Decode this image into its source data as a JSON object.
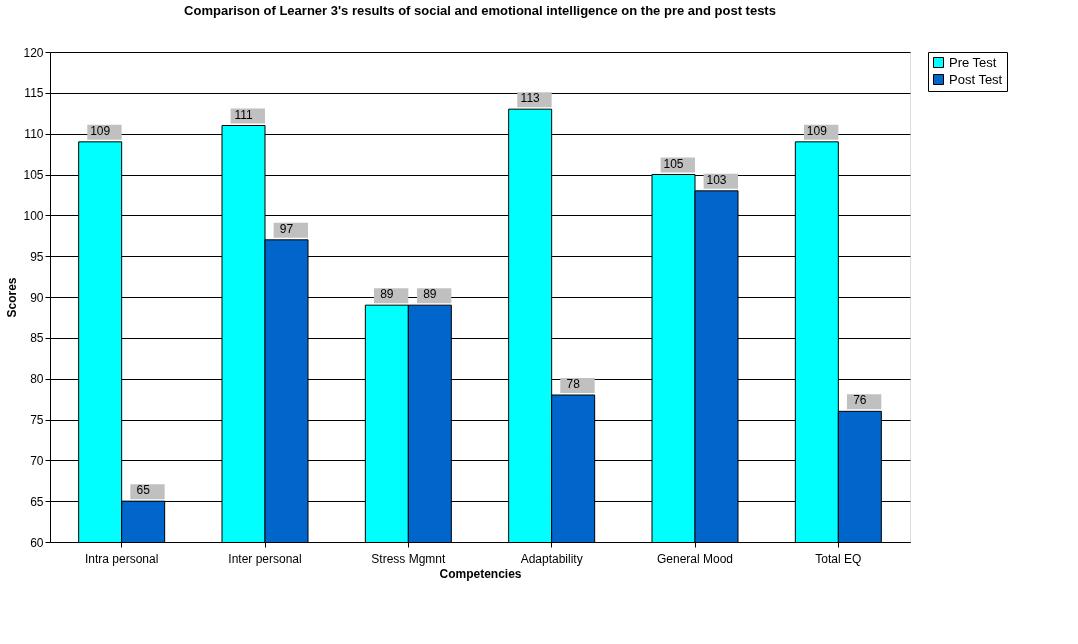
{
  "chart_data": {
    "type": "bar",
    "title": "Comparison of Learner 3's results of social and emotional intelligence on the pre and post tests",
    "xlabel": "Competencies",
    "ylabel": "Scores",
    "categories": [
      "Intra personal",
      "Inter personal",
      "Stress Mgmnt",
      "Adaptability",
      "General Mood",
      "Total EQ"
    ],
    "series": [
      {
        "name": "Pre Test",
        "color": "#00ffff",
        "values": [
          109,
          111,
          89,
          113,
          105,
          109
        ]
      },
      {
        "name": "Post Test",
        "color": "#0066cc",
        "values": [
          65,
          97,
          89,
          78,
          103,
          76
        ]
      }
    ],
    "ylim": [
      60,
      120
    ],
    "yticks": [
      60,
      65,
      70,
      75,
      80,
      85,
      90,
      95,
      100,
      105,
      110,
      115,
      120
    ],
    "grid": "y",
    "legend": "right",
    "data_labels": true
  }
}
